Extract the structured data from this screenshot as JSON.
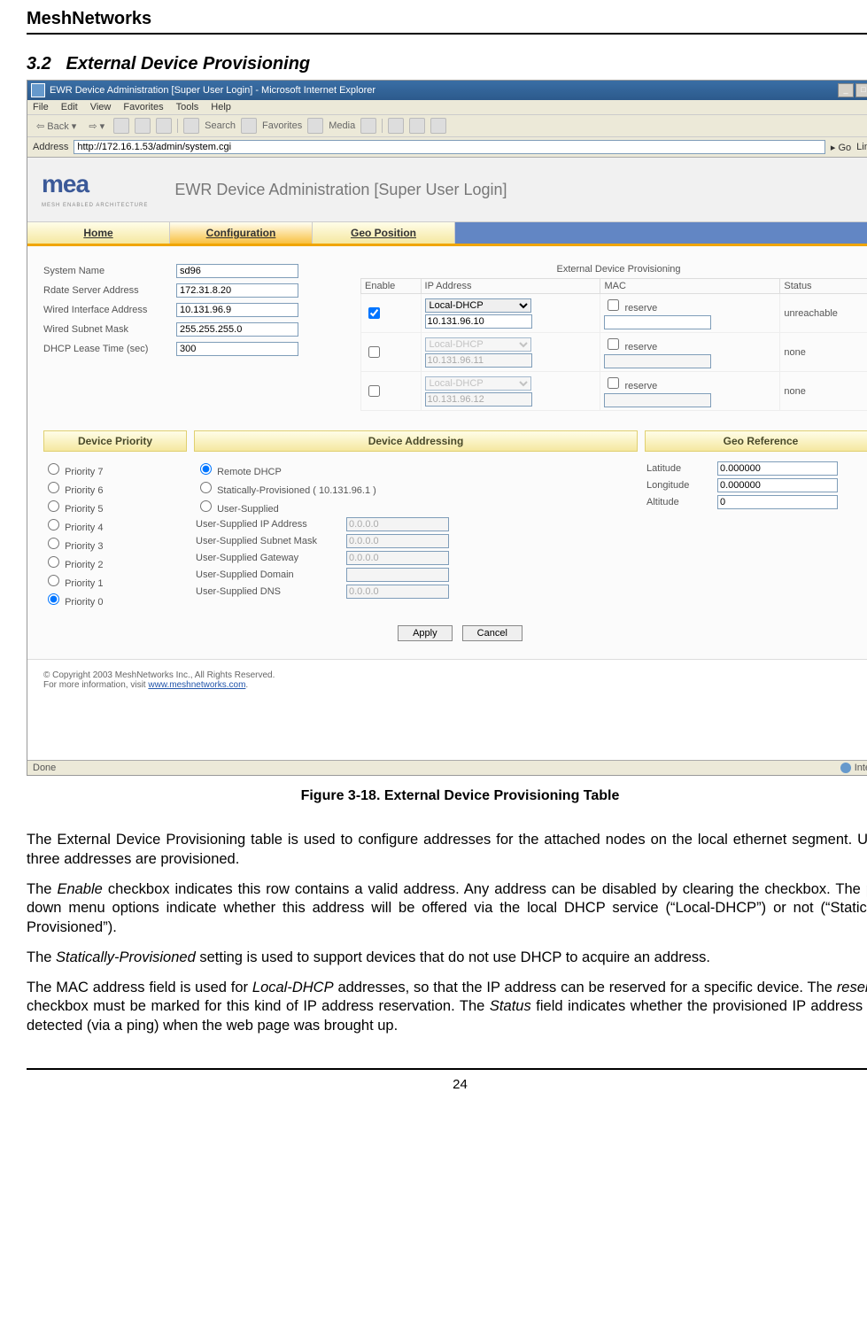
{
  "doc_header": "MeshNetworks",
  "section_number": "3.2",
  "section_title": "External Device Provisioning",
  "window_title": "EWR Device Administration [Super User Login] - Microsoft Internet Explorer",
  "menu": [
    "File",
    "Edit",
    "View",
    "Favorites",
    "Tools",
    "Help"
  ],
  "toolbar": {
    "back": "Back",
    "search": "Search",
    "favorites": "Favorites",
    "media": "Media"
  },
  "address_label": "Address",
  "address_url": "http://172.16.1.53/admin/system.cgi",
  "go_label": "Go",
  "links_label": "Links »",
  "logo": "mea",
  "logo_sub": "MESH ENABLED ARCHITECTURE",
  "banner_title": "EWR Device Administration [Super User Login]",
  "tabs": [
    "Home",
    "Configuration",
    "Geo Position"
  ],
  "left_fields": {
    "system_name": {
      "label": "System Name",
      "value": "sd96"
    },
    "rdate": {
      "label": "Rdate Server Address",
      "value": "172.31.8.20"
    },
    "wired_if": {
      "label": "Wired Interface Address",
      "value": "10.131.96.9"
    },
    "wired_mask": {
      "label": "Wired Subnet Mask",
      "value": "255.255.255.0"
    },
    "dhcp_lease": {
      "label": "DHCP Lease Time (sec)",
      "value": "300"
    }
  },
  "edp_title": "External Device Provisioning",
  "edp_headers": [
    "Enable",
    "IP Address",
    "MAC",
    "Status"
  ],
  "edp_rows": [
    {
      "enabled": true,
      "mode": "Local-DHCP",
      "ip": "10.131.96.10",
      "reserve": "reserve",
      "status": "unreachable"
    },
    {
      "enabled": false,
      "mode": "Local-DHCP",
      "ip": "10.131.96.11",
      "reserve": "reserve",
      "status": "none"
    },
    {
      "enabled": false,
      "mode": "Local-DHCP",
      "ip": "10.131.96.12",
      "reserve": "reserve",
      "status": "none"
    }
  ],
  "sections": {
    "priority": "Device Priority",
    "addressing": "Device Addressing",
    "geo": "Geo Reference"
  },
  "priorities": [
    "Priority 7",
    "Priority 6",
    "Priority 5",
    "Priority 4",
    "Priority 3",
    "Priority 2",
    "Priority 1",
    "Priority 0"
  ],
  "addressing": {
    "remote": "Remote DHCP",
    "static": "Statically-Provisioned ( 10.131.96.1 )",
    "user": "User-Supplied",
    "rows": [
      {
        "label": "User-Supplied IP Address",
        "value": "0.0.0.0"
      },
      {
        "label": "User-Supplied Subnet Mask",
        "value": "0.0.0.0"
      },
      {
        "label": "User-Supplied Gateway",
        "value": "0.0.0.0"
      },
      {
        "label": "User-Supplied Domain",
        "value": ""
      },
      {
        "label": "User-Supplied DNS",
        "value": "0.0.0.0"
      }
    ]
  },
  "geo": {
    "lat_label": "Latitude",
    "lat": "0.000000",
    "lon_label": "Longitude",
    "lon": "0.000000",
    "alt_label": "Altitude",
    "alt": "0"
  },
  "apply": "Apply",
  "cancel": "Cancel",
  "copyright": "© Copyright 2003 MeshNetworks Inc., All Rights Reserved.",
  "moreinfo": "For more information, visit ",
  "moreinfo_link": "www.meshnetworks.com",
  "status_done": "Done",
  "status_zone": "Internet",
  "caption": "Figure 3-18.   External Device Provisioning Table",
  "para1": "The External Device Provisioning table is used to configure addresses for the attached nodes on the local ethernet segment.  Up to three addresses are provisioned.",
  "para2a": "The ",
  "para2b": "Enable",
  "para2c": " checkbox indicates this row contains a valid address.  Any address can be disabled by clearing the checkbox.  The pull-down menu options indicate whether this address will be offered via the local DHCP service (“Local-DHCP”) or not (“Statically-Provisioned”).",
  "para3a": "The ",
  "para3b": "Statically-Provisioned",
  "para3c": " setting is used to support devices that do not use DHCP to acquire an address.",
  "para4a": "The MAC address field is used for ",
  "para4b": "Local-DHCP",
  "para4c": " addresses, so that the IP address can be reserved for a specific device.  The ",
  "para4d": "reserved",
  "para4e": " checkbox must be marked for this kind of IP address reservation.  The ",
  "para4f": "Status",
  "para4g": " field indicates whether the provisioned IP address was detected (via a ping) when the web page was brought up.",
  "page_number": "24"
}
